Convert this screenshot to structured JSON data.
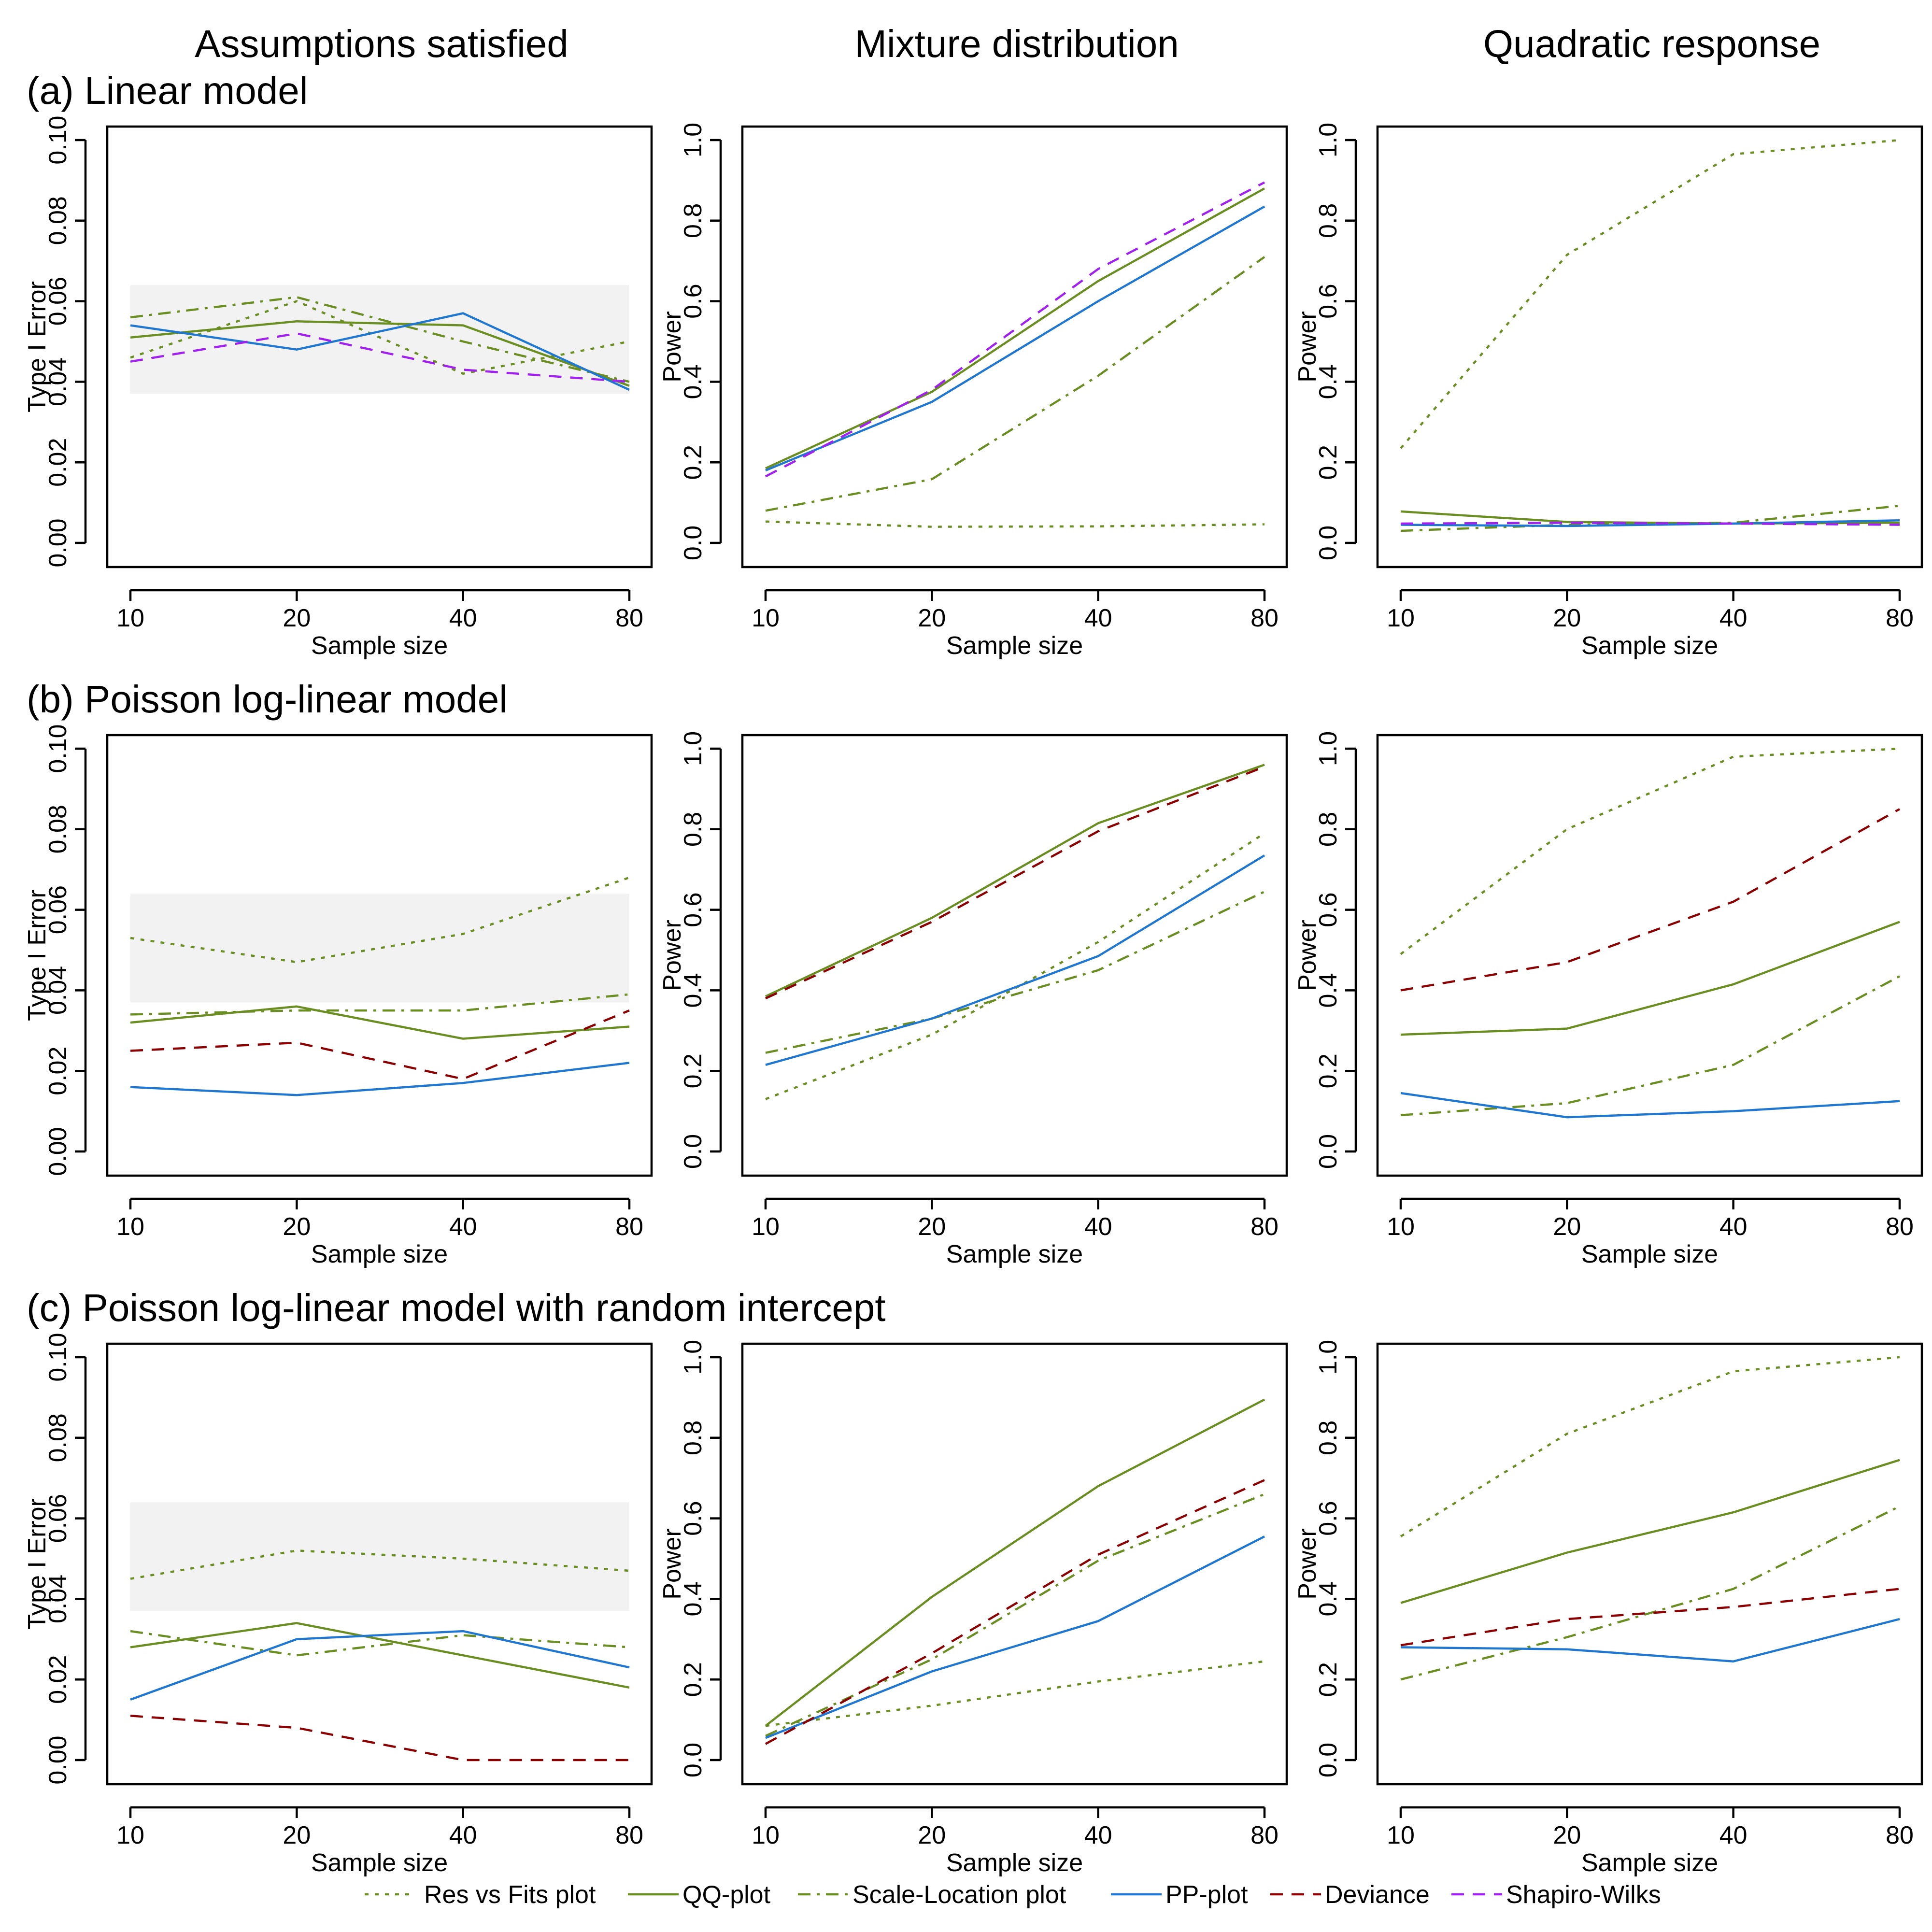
{
  "column_titles": [
    "Assumptions satisfied",
    "Mixture distribution",
    "Quadratic response"
  ],
  "row_titles": [
    "(a) Linear model",
    "(b) Poisson log-linear model",
    "(c) Poisson log-linear model with random intercept"
  ],
  "legend": [
    {
      "key": "resfits",
      "label": "Res vs Fits plot"
    },
    {
      "key": "qq",
      "label": "QQ-plot"
    },
    {
      "key": "sl",
      "label": "Scale-Location plot"
    },
    {
      "key": "pp",
      "label": "PP-plot"
    },
    {
      "key": "dev",
      "label": "Deviance"
    },
    {
      "key": "sw",
      "label": "Shapiro-Wilks"
    }
  ],
  "styles": {
    "resfits": {
      "color": "#6b8e23",
      "dash": "8,13"
    },
    "qq": {
      "color": "#6b8e23",
      "dash": ""
    },
    "sl": {
      "color": "#6b8e23",
      "dash": "26,13,6,13"
    },
    "pp": {
      "color": "#1f77d0",
      "dash": ""
    },
    "dev": {
      "color": "#8b0000",
      "dash": "26,18"
    },
    "sw": {
      "color": "#a020f0",
      "dash": "26,18"
    }
  },
  "band_color": "#f2f2f2",
  "chart_data": [
    {
      "type": "line",
      "panel": "a1",
      "xlabel": "Sample size",
      "ylabel": "Type I Error",
      "categories": [
        "10",
        "20",
        "40",
        "80"
      ],
      "ylim": [
        0,
        0.1
      ],
      "yticks": [
        "0.00",
        "0.02",
        "0.04",
        "0.06",
        "0.08",
        "0.10"
      ],
      "ytick_values": [
        0,
        0.02,
        0.04,
        0.06,
        0.08,
        0.1
      ],
      "band": [
        0.037,
        0.064
      ],
      "series": [
        {
          "key": "resfits",
          "values": [
            0.046,
            0.06,
            0.042,
            0.05
          ]
        },
        {
          "key": "qq",
          "values": [
            0.051,
            0.055,
            0.054,
            0.039
          ]
        },
        {
          "key": "sl",
          "values": [
            0.056,
            0.061,
            0.05,
            0.04
          ]
        },
        {
          "key": "pp",
          "values": [
            0.054,
            0.048,
            0.057,
            0.038
          ]
        },
        {
          "key": "sw",
          "values": [
            0.045,
            0.052,
            0.043,
            0.04
          ]
        }
      ]
    },
    {
      "type": "line",
      "panel": "a2",
      "xlabel": "Sample size",
      "ylabel": "Power",
      "categories": [
        "10",
        "20",
        "40",
        "80"
      ],
      "ylim": [
        0,
        1
      ],
      "yticks": [
        "0.0",
        "0.2",
        "0.4",
        "0.6",
        "0.8",
        "1.0"
      ],
      "ytick_values": [
        0,
        0.2,
        0.4,
        0.6,
        0.8,
        1.0
      ],
      "series": [
        {
          "key": "resfits",
          "values": [
            0.053,
            0.04,
            0.041,
            0.046
          ]
        },
        {
          "key": "qq",
          "values": [
            0.185,
            0.375,
            0.65,
            0.88
          ]
        },
        {
          "key": "sl",
          "values": [
            0.08,
            0.158,
            0.415,
            0.71
          ]
        },
        {
          "key": "pp",
          "values": [
            0.18,
            0.35,
            0.6,
            0.835
          ]
        },
        {
          "key": "sw",
          "values": [
            0.165,
            0.38,
            0.68,
            0.895
          ]
        }
      ]
    },
    {
      "type": "line",
      "panel": "a3",
      "xlabel": "Sample size",
      "ylabel": "Power",
      "categories": [
        "10",
        "20",
        "40",
        "80"
      ],
      "ylim": [
        0,
        1
      ],
      "yticks": [
        "0.0",
        "0.2",
        "0.4",
        "0.6",
        "0.8",
        "1.0"
      ],
      "ytick_values": [
        0,
        0.2,
        0.4,
        0.6,
        0.8,
        1.0
      ],
      "series": [
        {
          "key": "resfits",
          "values": [
            0.235,
            0.715,
            0.965,
            1.0
          ]
        },
        {
          "key": "qq",
          "values": [
            0.078,
            0.052,
            0.048,
            0.05
          ]
        },
        {
          "key": "sl",
          "values": [
            0.03,
            0.045,
            0.05,
            0.092
          ]
        },
        {
          "key": "pp",
          "values": [
            0.045,
            0.042,
            0.048,
            0.056
          ]
        },
        {
          "key": "sw",
          "values": [
            0.048,
            0.05,
            0.048,
            0.045
          ]
        }
      ]
    },
    {
      "type": "line",
      "panel": "b1",
      "xlabel": "Sample size",
      "ylabel": "Type I Error",
      "categories": [
        "10",
        "20",
        "40",
        "80"
      ],
      "ylim": [
        0,
        0.1
      ],
      "yticks": [
        "0.00",
        "0.02",
        "0.04",
        "0.06",
        "0.08",
        "0.10"
      ],
      "ytick_values": [
        0,
        0.02,
        0.04,
        0.06,
        0.08,
        0.1
      ],
      "band": [
        0.037,
        0.064
      ],
      "series": [
        {
          "key": "resfits",
          "values": [
            0.053,
            0.047,
            0.054,
            0.068
          ]
        },
        {
          "key": "qq",
          "values": [
            0.032,
            0.036,
            0.028,
            0.031
          ]
        },
        {
          "key": "sl",
          "values": [
            0.034,
            0.035,
            0.035,
            0.039
          ]
        },
        {
          "key": "pp",
          "values": [
            0.016,
            0.014,
            0.017,
            0.022
          ]
        },
        {
          "key": "dev",
          "values": [
            0.025,
            0.027,
            0.018,
            0.035
          ]
        }
      ]
    },
    {
      "type": "line",
      "panel": "b2",
      "xlabel": "Sample size",
      "ylabel": "Power",
      "categories": [
        "10",
        "20",
        "40",
        "80"
      ],
      "ylim": [
        0,
        1
      ],
      "yticks": [
        "0.0",
        "0.2",
        "0.4",
        "0.6",
        "0.8",
        "1.0"
      ],
      "ytick_values": [
        0,
        0.2,
        0.4,
        0.6,
        0.8,
        1.0
      ],
      "series": [
        {
          "key": "resfits",
          "values": [
            0.13,
            0.29,
            0.52,
            0.79
          ]
        },
        {
          "key": "qq",
          "values": [
            0.385,
            0.58,
            0.815,
            0.96
          ]
        },
        {
          "key": "sl",
          "values": [
            0.245,
            0.33,
            0.45,
            0.645
          ]
        },
        {
          "key": "pp",
          "values": [
            0.215,
            0.33,
            0.485,
            0.735
          ]
        },
        {
          "key": "dev",
          "values": [
            0.38,
            0.57,
            0.795,
            0.955
          ]
        }
      ]
    },
    {
      "type": "line",
      "panel": "b3",
      "xlabel": "Sample size",
      "ylabel": "Power",
      "categories": [
        "10",
        "20",
        "40",
        "80"
      ],
      "ylim": [
        0,
        1
      ],
      "yticks": [
        "0.0",
        "0.2",
        "0.4",
        "0.6",
        "0.8",
        "1.0"
      ],
      "ytick_values": [
        0,
        0.2,
        0.4,
        0.6,
        0.8,
        1.0
      ],
      "series": [
        {
          "key": "resfits",
          "values": [
            0.49,
            0.8,
            0.98,
            1.0
          ]
        },
        {
          "key": "qq",
          "values": [
            0.29,
            0.305,
            0.415,
            0.57
          ]
        },
        {
          "key": "sl",
          "values": [
            0.09,
            0.12,
            0.215,
            0.435
          ]
        },
        {
          "key": "pp",
          "values": [
            0.145,
            0.085,
            0.1,
            0.125
          ]
        },
        {
          "key": "dev",
          "values": [
            0.4,
            0.47,
            0.62,
            0.85
          ]
        }
      ]
    },
    {
      "type": "line",
      "panel": "c1",
      "xlabel": "Sample size",
      "ylabel": "Type I Error",
      "categories": [
        "10",
        "20",
        "40",
        "80"
      ],
      "ylim": [
        0,
        0.1
      ],
      "yticks": [
        "0.00",
        "0.02",
        "0.04",
        "0.06",
        "0.08",
        "0.10"
      ],
      "ytick_values": [
        0,
        0.02,
        0.04,
        0.06,
        0.08,
        0.1
      ],
      "band": [
        0.037,
        0.064
      ],
      "series": [
        {
          "key": "resfits",
          "values": [
            0.045,
            0.052,
            0.05,
            0.047
          ]
        },
        {
          "key": "qq",
          "values": [
            0.028,
            0.034,
            0.026,
            0.018
          ]
        },
        {
          "key": "sl",
          "values": [
            0.032,
            0.026,
            0.031,
            0.028
          ]
        },
        {
          "key": "pp",
          "values": [
            0.015,
            0.03,
            0.032,
            0.023
          ]
        },
        {
          "key": "dev",
          "values": [
            0.011,
            0.008,
            0.0,
            0.0
          ]
        }
      ]
    },
    {
      "type": "line",
      "panel": "c2",
      "xlabel": "Sample size",
      "ylabel": "Power",
      "categories": [
        "10",
        "20",
        "40",
        "80"
      ],
      "ylim": [
        0,
        1
      ],
      "yticks": [
        "0.0",
        "0.2",
        "0.4",
        "0.6",
        "0.8",
        "1.0"
      ],
      "ytick_values": [
        0,
        0.2,
        0.4,
        0.6,
        0.8,
        1.0
      ],
      "series": [
        {
          "key": "resfits",
          "values": [
            0.085,
            0.135,
            0.195,
            0.245
          ]
        },
        {
          "key": "qq",
          "values": [
            0.085,
            0.405,
            0.68,
            0.895
          ]
        },
        {
          "key": "sl",
          "values": [
            0.06,
            0.25,
            0.495,
            0.66
          ]
        },
        {
          "key": "pp",
          "values": [
            0.055,
            0.22,
            0.345,
            0.555
          ]
        },
        {
          "key": "dev",
          "values": [
            0.04,
            0.265,
            0.51,
            0.695
          ]
        }
      ]
    },
    {
      "type": "line",
      "panel": "c3",
      "xlabel": "Sample size",
      "ylabel": "Power",
      "categories": [
        "10",
        "20",
        "40",
        "80"
      ],
      "ylim": [
        0,
        1
      ],
      "yticks": [
        "0.0",
        "0.2",
        "0.4",
        "0.6",
        "0.8",
        "1.0"
      ],
      "ytick_values": [
        0,
        0.2,
        0.4,
        0.6,
        0.8,
        1.0
      ],
      "series": [
        {
          "key": "resfits",
          "values": [
            0.555,
            0.81,
            0.965,
            1.0
          ]
        },
        {
          "key": "qq",
          "values": [
            0.39,
            0.515,
            0.615,
            0.745
          ]
        },
        {
          "key": "sl",
          "values": [
            0.2,
            0.305,
            0.425,
            0.63
          ]
        },
        {
          "key": "pp",
          "values": [
            0.28,
            0.275,
            0.245,
            0.35
          ]
        },
        {
          "key": "dev",
          "values": [
            0.285,
            0.35,
            0.38,
            0.425
          ]
        }
      ]
    }
  ]
}
